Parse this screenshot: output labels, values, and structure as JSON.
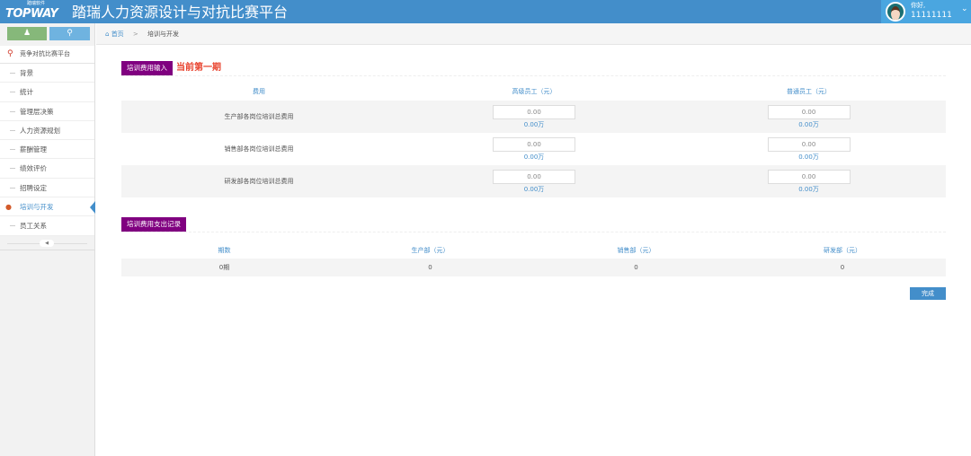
{
  "header": {
    "logo": "TOPWAY",
    "logo_sub": "踏瑞软件",
    "title": "踏瑞人力资源设计与对抗比赛平台",
    "greeting": "你好,",
    "username": "11111111"
  },
  "colors": {
    "header": "#438eca",
    "accent": "#800080",
    "period": "#e8432e"
  },
  "sidebar": {
    "top_buttons": [
      {
        "icon": "user-icon",
        "color": "#86b87a"
      },
      {
        "icon": "trophy-icon",
        "color": "#6fb3e0"
      }
    ],
    "platform": "竞争对抗比赛平台",
    "items": [
      {
        "label": "背景"
      },
      {
        "label": "统计"
      },
      {
        "label": "管理层决策"
      },
      {
        "label": "人力资源规划"
      },
      {
        "label": "薪酬管理"
      },
      {
        "label": "绩效评价"
      },
      {
        "label": "招聘设定"
      },
      {
        "label": "培训与开发",
        "active": true
      },
      {
        "label": "员工关系"
      }
    ]
  },
  "breadcrumb": {
    "home": "首页",
    "current": "培训与开发"
  },
  "input_section": {
    "label": "培训费用输入",
    "period": "当前第一期",
    "headers": [
      "费用",
      "高级员工（元）",
      "普通员工（元）"
    ],
    "rows": [
      {
        "name": "生产部各岗位培训总费用",
        "senior": "0.00",
        "senior_wan": "0.00万",
        "normal": "0.00",
        "normal_wan": "0.00万"
      },
      {
        "name": "销售部各岗位培训总费用",
        "senior": "0.00",
        "senior_wan": "0.00万",
        "normal": "0.00",
        "normal_wan": "0.00万"
      },
      {
        "name": "研发部各岗位培训总费用",
        "senior": "0.00",
        "senior_wan": "0.00万",
        "normal": "0.00",
        "normal_wan": "0.00万"
      }
    ]
  },
  "record_section": {
    "label": "培训费用支出记录",
    "headers": [
      "期数",
      "生产部（元）",
      "销售部（元）",
      "研发部（元）"
    ],
    "rows": [
      [
        "0期",
        "0",
        "0",
        "0"
      ]
    ]
  },
  "done_label": "完成"
}
